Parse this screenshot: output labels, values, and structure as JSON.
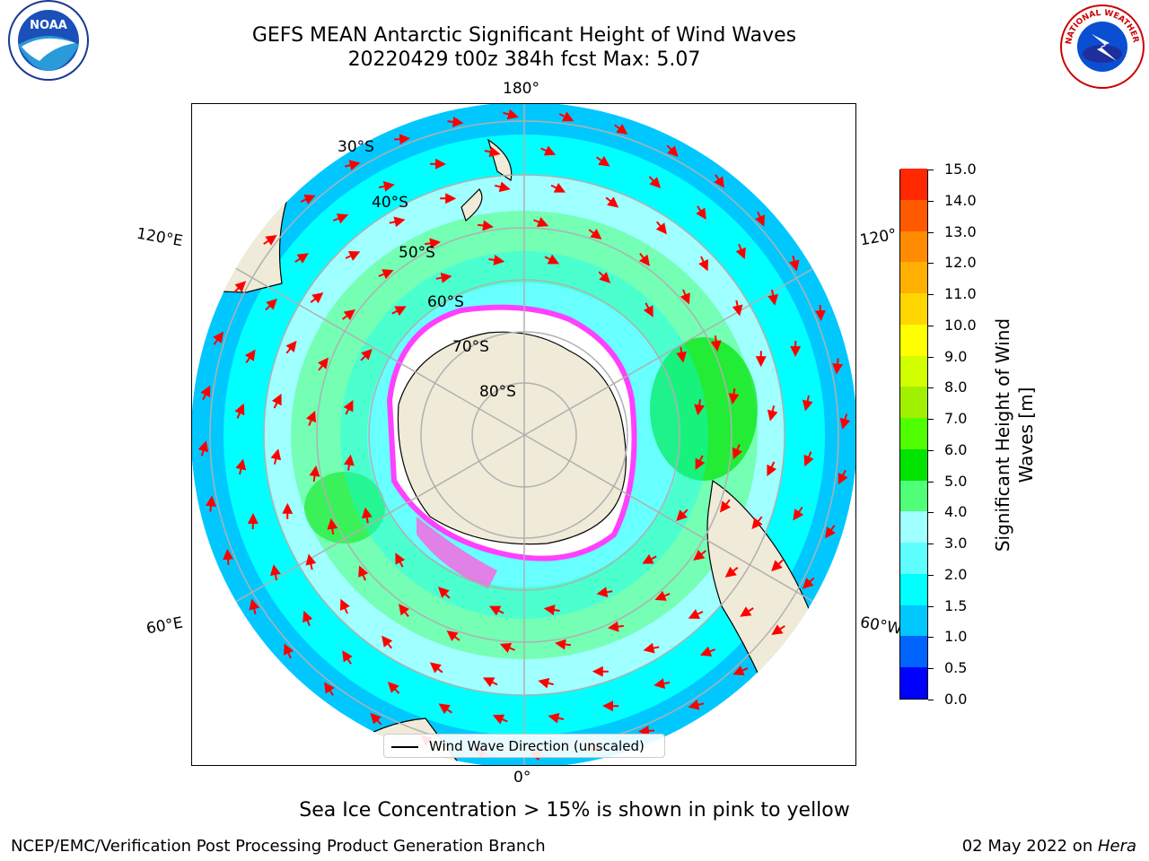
{
  "title_line1": "GEFS MEAN Antarctic Significant Height of Wind Waves",
  "title_line2": "20220429 t00z 384h fcst   Max: 5.07",
  "longitude_labels": {
    "lon_180": "180°",
    "lon_0": "0°",
    "lon_120e": "120°E",
    "lon_60e": "60°E",
    "lon_120w": "120°",
    "lon_60w": "60°W"
  },
  "latitude_labels": [
    "30°S",
    "40°S",
    "50°S",
    "60°S",
    "70°S",
    "80°S"
  ],
  "colorbar": {
    "title": "Significant Height of Wind Waves [m]",
    "ticks": [
      "0.0",
      "0.5",
      "1.0",
      "1.5",
      "2.0",
      "3.0",
      "4.0",
      "5.0",
      "6.0",
      "7.0",
      "8.0",
      "9.0",
      "10.0",
      "11.0",
      "12.0",
      "13.0",
      "14.0",
      "15.0"
    ],
    "colors": [
      "#0000ff",
      "#0064ff",
      "#00c8ff",
      "#00ffff",
      "#60ffff",
      "#a0ffff",
      "#50ff78",
      "#00e400",
      "#50ff00",
      "#a0f000",
      "#d2ff00",
      "#ffff00",
      "#ffd600",
      "#ffb000",
      "#ff8c00",
      "#ff5a00",
      "#ff2800"
    ]
  },
  "legend_label": "Wind Wave Direction (unscaled)",
  "note": "Sea Ice Concentration > 15% is shown in pink to yellow",
  "footer_left": "NCEP/EMC/Verification Post Processing Product Generation Branch",
  "footer_date": "02 May 2022 on ",
  "footer_machine": "Hera",
  "logos": {
    "noaa": "NOAA",
    "nws": "NATIONAL WEATHER SERVICE"
  },
  "map_colors": {
    "land": "#efebd8",
    "ocean_low": "#00ffff",
    "ocean_mid": "#a0ffff",
    "ocean_high": "#50ff78",
    "arrow": "#ff0000",
    "ice": "#ff40ff"
  }
}
